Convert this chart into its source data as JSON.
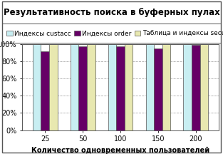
{
  "title": "Результативность поиска в буферных пулах",
  "xlabel": "Количество одновременных пользователей",
  "categories": [
    25,
    50,
    100,
    150,
    200
  ],
  "series": [
    {
      "label": "Индексы custacc",
      "color": "#c8eef2",
      "values": [
        99.5,
        99.5,
        99.5,
        99.5,
        99.5
      ]
    },
    {
      "label": "Индексы order",
      "color": "#660066",
      "values": [
        91.5,
        97.0,
        97.5,
        95.0,
        98.5
      ]
    },
    {
      "label": "Таблица и индексы security",
      "color": "#e8e8b0",
      "values": [
        99.8,
        99.8,
        99.8,
        99.8,
        99.8
      ]
    }
  ],
  "ylim": [
    0,
    100
  ],
  "yticks": [
    0,
    20,
    40,
    60,
    80,
    100
  ],
  "ytick_labels": [
    "0%",
    "20%",
    "40%",
    "60%",
    "80%",
    "100%"
  ],
  "grid_color": "#aaaaaa",
  "bg_color": "#ffffff",
  "bar_width": 0.22,
  "title_fontsize": 8.5,
  "legend_fontsize": 6.5,
  "axis_fontsize": 7,
  "tick_fontsize": 7
}
